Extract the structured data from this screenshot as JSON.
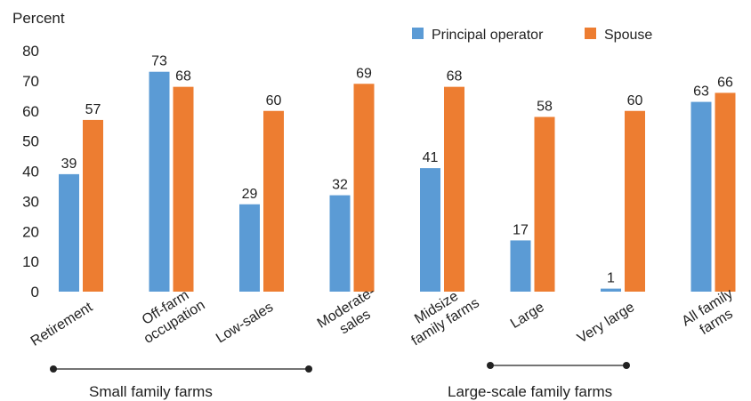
{
  "chart_data": {
    "type": "bar",
    "ylabel": "Percent",
    "ylim": [
      0,
      80
    ],
    "yticks": [
      0,
      10,
      20,
      30,
      40,
      50,
      60,
      70,
      80
    ],
    "grid": false,
    "legend_position": "top-right",
    "categories": [
      "Retirement",
      "Off-farm occupation",
      "Low-sales",
      "Moderate-sales",
      "Midsize family farms",
      "Large",
      "Very large",
      "All family farms"
    ],
    "series": [
      {
        "name": "Principal operator",
        "color": "#5B9BD5",
        "values": [
          39,
          73,
          29,
          32,
          41,
          17,
          1,
          63
        ]
      },
      {
        "name": "Spouse",
        "color": "#ED7D31",
        "values": [
          57,
          68,
          60,
          69,
          68,
          58,
          60,
          66
        ]
      }
    ],
    "groups": [
      {
        "label": "Small family farms",
        "from": 0,
        "to": 3
      },
      {
        "label": "Large-scale family farms",
        "from": 5,
        "to": 6
      }
    ]
  }
}
